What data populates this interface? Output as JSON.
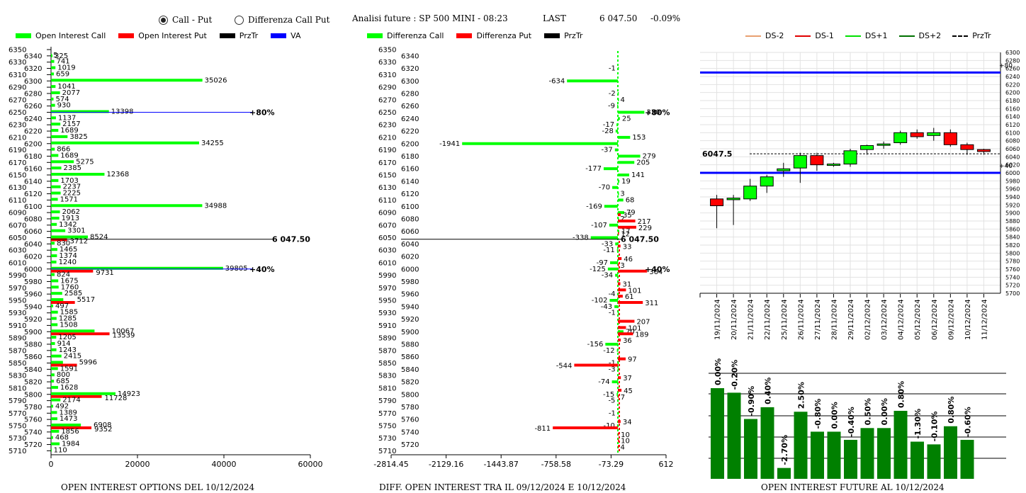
{
  "header": {
    "radio_call_put": "Call - Put",
    "radio_diff": "Differenza Call Put",
    "analysis": "Analisi future : SP 500 MINI - 08:23",
    "last_label": "LAST",
    "last_value": "6 047.50",
    "last_change": "-0.09%"
  },
  "legend1": {
    "call": "Open Interest Call",
    "put": "Open Interest Put",
    "przt": "PrzTr",
    "va": "VA"
  },
  "legend2": {
    "call": "Differenza Call",
    "put": "Differenza Put",
    "przt": "PrzTr"
  },
  "legend3": {
    "ds2": "DS-2",
    "ds1": "DS-1",
    "ds1p": "DS+1",
    "ds2p": "DS+2",
    "przt": "PrzTr"
  },
  "footer": {
    "left": "OPEN INTEREST OPTIONS DEL 10/12/2024",
    "mid": "DIFF. OPEN INTEREST TRA IL 09/12/2024 E 10/12/2024",
    "right": "OPEN INTEREST FUTURE AL 10/12/2024"
  },
  "colors": {
    "call": "#00ff00",
    "put": "#ff0000",
    "dark_green": "#008000",
    "va": "#0000ff"
  },
  "chart_data": [
    {
      "type": "bar",
      "orientation": "horizontal",
      "strikes": [
        6350,
        6340,
        6330,
        6320,
        6310,
        6300,
        6290,
        6280,
        6270,
        6260,
        6250,
        6240,
        6230,
        6220,
        6210,
        6200,
        6190,
        6180,
        6170,
        6160,
        6150,
        6140,
        6130,
        6120,
        6110,
        6100,
        6090,
        6080,
        6070,
        6060,
        6050,
        6040,
        6030,
        6020,
        6010,
        6000,
        5990,
        5980,
        5970,
        5960,
        5950,
        5940,
        5930,
        5920,
        5910,
        5900,
        5890,
        5880,
        5870,
        5860,
        5850,
        5840,
        5830,
        5820,
        5810,
        5800,
        5790,
        5780,
        5770,
        5760,
        5750,
        5740,
        5730,
        5720,
        5710
      ],
      "xlim": [
        0,
        60000
      ],
      "xticks": [
        "0",
        "20000",
        "40000",
        "60000"
      ],
      "bars": [
        {
          "strike": 6340,
          "call": 5,
          "put": 0,
          "label": "5"
        },
        {
          "strike": 6340,
          "call": 325,
          "put": 0,
          "label": "325",
          "offset": 1
        },
        {
          "strike": 6330,
          "call": 741,
          "put": 0,
          "label": "741"
        },
        {
          "strike": 6320,
          "call": 1019,
          "put": 0,
          "label": "1019"
        },
        {
          "strike": 6310,
          "call": 659,
          "put": 0,
          "label": "659"
        },
        {
          "strike": 6300,
          "call": 35026,
          "put": 0,
          "label": "35026"
        },
        {
          "strike": 6290,
          "call": 1041,
          "put": 0,
          "label": "1041"
        },
        {
          "strike": 6280,
          "call": 2077,
          "put": 0,
          "label": "2077"
        },
        {
          "strike": 6270,
          "call": 574,
          "put": 0,
          "label": "574"
        },
        {
          "strike": 6260,
          "call": 930,
          "put": 0,
          "label": "930"
        },
        {
          "strike": 6250,
          "call": 13398,
          "put": 0,
          "label": "13398"
        },
        {
          "strike": 6240,
          "call": 1137,
          "put": 0,
          "label": "1137"
        },
        {
          "strike": 6230,
          "call": 2157,
          "put": 0,
          "label": "2157"
        },
        {
          "strike": 6220,
          "call": 1689,
          "put": 0,
          "label": "1689"
        },
        {
          "strike": 6210,
          "call": 3825,
          "put": 0,
          "label": "3825"
        },
        {
          "strike": 6200,
          "call": 34255,
          "put": 0,
          "label": "34255"
        },
        {
          "strike": 6190,
          "call": 866,
          "put": 0,
          "label": "866"
        },
        {
          "strike": 6180,
          "call": 1689,
          "put": 0,
          "label": "1689"
        },
        {
          "strike": 6170,
          "call": 5275,
          "put": 0,
          "label": "5275"
        },
        {
          "strike": 6160,
          "call": 2385,
          "put": 0,
          "label": "2385"
        },
        {
          "strike": 6150,
          "call": 12368,
          "put": 0,
          "label": "12368"
        },
        {
          "strike": 6140,
          "call": 1703,
          "put": 0,
          "label": "1703"
        },
        {
          "strike": 6130,
          "call": 2237,
          "put": 0,
          "label": "2237"
        },
        {
          "strike": 6120,
          "call": 2225,
          "put": 0,
          "label": "2225"
        },
        {
          "strike": 6110,
          "call": 1571,
          "put": 0,
          "label": "1571"
        },
        {
          "strike": 6100,
          "call": 34988,
          "put": 0,
          "label": "34988"
        },
        {
          "strike": 6090,
          "call": 2062,
          "put": 0,
          "label": "2062"
        },
        {
          "strike": 6080,
          "call": 1913,
          "put": 0,
          "label": "1913"
        },
        {
          "strike": 6070,
          "call": 1342,
          "put": 0,
          "label": "1342"
        },
        {
          "strike": 6060,
          "call": 3301,
          "put": 0,
          "label": "3301"
        },
        {
          "strike": 6050,
          "call": 8524,
          "put": 3712,
          "label": "8524"
        },
        {
          "strike": 6040,
          "call": 830,
          "put": 0,
          "label": "830"
        },
        {
          "strike": 6030,
          "call": 1465,
          "put": 0,
          "label": "1465"
        },
        {
          "strike": 6020,
          "call": 1374,
          "put": 0,
          "label": "1374"
        },
        {
          "strike": 6010,
          "call": 1240,
          "put": 0,
          "label": "1240"
        },
        {
          "strike": 6000,
          "call": 39805,
          "put": 9731,
          "label": "39805"
        },
        {
          "strike": 5990,
          "call": 824,
          "put": 0,
          "label": "824"
        },
        {
          "strike": 5980,
          "call": 1675,
          "put": 0,
          "label": "1675"
        },
        {
          "strike": 5970,
          "call": 1760,
          "put": 0,
          "label": "1760"
        },
        {
          "strike": 5960,
          "call": 2585,
          "put": 0,
          "label": "2585"
        },
        {
          "strike": 5950,
          "call": 2842,
          "put": 5517,
          "label": "5517"
        },
        {
          "strike": 5940,
          "call": 497,
          "put": 0,
          "label": "497"
        },
        {
          "strike": 5930,
          "call": 1585,
          "put": 0,
          "label": "1585"
        },
        {
          "strike": 5920,
          "call": 1285,
          "put": 0,
          "label": "1285"
        },
        {
          "strike": 5910,
          "call": 1508,
          "put": 0,
          "label": "1508"
        },
        {
          "strike": 5900,
          "call": 10067,
          "put": 13539,
          "label": "10067"
        },
        {
          "strike": 5890,
          "call": 1205,
          "put": 0,
          "label": "1205"
        },
        {
          "strike": 5880,
          "call": 914,
          "put": 0,
          "label": "914"
        },
        {
          "strike": 5870,
          "call": 1243,
          "put": 0,
          "label": "1243"
        },
        {
          "strike": 5860,
          "call": 2415,
          "put": 0,
          "label": "2415"
        },
        {
          "strike": 5850,
          "call": 2759,
          "put": 5996,
          "label": "5996"
        },
        {
          "strike": 5840,
          "call": 1591,
          "put": 0,
          "label": "1591"
        },
        {
          "strike": 5830,
          "call": 800,
          "put": 0,
          "label": "800"
        },
        {
          "strike": 5820,
          "call": 685,
          "put": 0,
          "label": "685"
        },
        {
          "strike": 5810,
          "call": 1628,
          "put": 0,
          "label": "1628"
        },
        {
          "strike": 5800,
          "call": 14923,
          "put": 11728,
          "label": "14923"
        },
        {
          "strike": 5790,
          "call": 2174,
          "put": 0,
          "label": "2174"
        },
        {
          "strike": 5780,
          "call": 492,
          "put": 0,
          "label": "492"
        },
        {
          "strike": 5770,
          "call": 1389,
          "put": 0,
          "label": "1389"
        },
        {
          "strike": 5760,
          "call": 1473,
          "put": 0,
          "label": "1473"
        },
        {
          "strike": 5750,
          "call": 6908,
          "put": 9352,
          "label": "6908"
        },
        {
          "strike": 5740,
          "call": 1856,
          "put": 0,
          "label": "1856"
        },
        {
          "strike": 5730,
          "call": 468,
          "put": 0,
          "label": "468"
        },
        {
          "strike": 5720,
          "call": 1984,
          "put": 0,
          "label": "1984"
        },
        {
          "strike": 5710,
          "call": 110,
          "put": 0,
          "label": "110"
        }
      ],
      "extra_labels": [
        {
          "strike": 6000,
          "text": "9731"
        },
        {
          "strike": 5900,
          "text": "13539"
        },
        {
          "strike": 5800,
          "text": "11728"
        },
        {
          "strike": 5750,
          "text": "9352"
        },
        {
          "strike": 6050,
          "text": "3712"
        }
      ],
      "price": {
        "strike": 6047.5,
        "label": "6 047.50"
      },
      "va_lines": [
        {
          "strike": 6250,
          "label": "+80%"
        },
        {
          "strike": 6000,
          "label": "+40%"
        }
      ]
    },
    {
      "type": "bar",
      "orientation": "horizontal",
      "xlim": [
        -2814.45,
        612
      ],
      "xticks": [
        "-2814.45",
        "-2129.16",
        "-1443.87",
        "-758.58",
        "-73.29",
        "612"
      ],
      "calls": [
        {
          "strike": 6320,
          "value": -1
        },
        {
          "strike": 6300,
          "value": -634
        },
        {
          "strike": 6280,
          "value": -2
        },
        {
          "strike": 6270,
          "value": 4
        },
        {
          "strike": 6260,
          "value": -9
        },
        {
          "strike": 6250,
          "value": 330
        },
        {
          "strike": 6240,
          "value": 25
        },
        {
          "strike": 6230,
          "value": -17
        },
        {
          "strike": 6220,
          "value": -28
        },
        {
          "strike": 6210,
          "value": 153
        },
        {
          "strike": 6200,
          "value": -1941
        },
        {
          "strike": 6190,
          "value": -37
        },
        {
          "strike": 6180,
          "value": 279
        },
        {
          "strike": 6170,
          "value": 205
        },
        {
          "strike": 6160,
          "value": -177
        },
        {
          "strike": 6150,
          "value": 141
        },
        {
          "strike": 6140,
          "value": 19
        },
        {
          "strike": 6130,
          "value": -70
        },
        {
          "strike": 6120,
          "value": 3
        },
        {
          "strike": 6110,
          "value": 68
        },
        {
          "strike": 6100,
          "value": -169
        },
        {
          "strike": 6090,
          "value": 79
        },
        {
          "strike": 6080,
          "value": 2
        },
        {
          "strike": 6070,
          "value": -107
        },
        {
          "strike": 6060,
          "value": 17
        },
        {
          "strike": 6050,
          "value": -338
        },
        {
          "strike": 6040,
          "value": -33
        },
        {
          "strike": 6030,
          "value": -11
        },
        {
          "strike": 6010,
          "value": -97
        },
        {
          "strike": 6000,
          "value": -125
        },
        {
          "strike": 5990,
          "value": -34
        },
        {
          "strike": 5960,
          "value": -4
        },
        {
          "strike": 5950,
          "value": -102
        },
        {
          "strike": 5940,
          "value": -43
        },
        {
          "strike": 5930,
          "value": -1
        },
        {
          "strike": 5900,
          "value": 70
        },
        {
          "strike": 5880,
          "value": -156
        },
        {
          "strike": 5870,
          "value": -12
        },
        {
          "strike": 5850,
          "value": -1
        },
        {
          "strike": 5840,
          "value": -3
        },
        {
          "strike": 5820,
          "value": -74
        },
        {
          "strike": 5800,
          "value": -15
        },
        {
          "strike": 5790,
          "value": -5
        },
        {
          "strike": 5770,
          "value": -1
        },
        {
          "strike": 5750,
          "value": -10
        }
      ],
      "puts": [
        {
          "strike": 6090,
          "value": 35
        },
        {
          "strike": 6080,
          "value": 217
        },
        {
          "strike": 6070,
          "value": 229
        },
        {
          "strike": 6020,
          "value": 46
        },
        {
          "strike": 6010,
          "value": 3
        },
        {
          "strike": 6000,
          "value": 364
        },
        {
          "strike": 5980,
          "value": 31
        },
        {
          "strike": 5970,
          "value": 101
        },
        {
          "strike": 5960,
          "value": 61
        },
        {
          "strike": 5950,
          "value": 311
        },
        {
          "strike": 5920,
          "value": 207
        },
        {
          "strike": 5910,
          "value": 101
        },
        {
          "strike": 5900,
          "value": 189
        },
        {
          "strike": 5890,
          "value": 36
        },
        {
          "strike": 5860,
          "value": 97
        },
        {
          "strike": 5850,
          "value": -544
        },
        {
          "strike": 5830,
          "value": 37
        },
        {
          "strike": 5810,
          "value": 45
        },
        {
          "strike": 5800,
          "value": 7
        },
        {
          "strike": 5760,
          "value": 34
        },
        {
          "strike": 5750,
          "value": -811
        },
        {
          "strike": 5740,
          "value": 10
        },
        {
          "strike": 5730,
          "value": 10
        },
        {
          "strike": 5720,
          "value": 4
        },
        {
          "strike": 6060,
          "value": 12
        },
        {
          "strike": 6040,
          "value": 33
        }
      ],
      "price_label": "6 047.50",
      "va_labels": [
        "+80%",
        "+40%"
      ]
    },
    {
      "type": "candlestick",
      "dates": [
        "19/11/2024",
        "20/11/2024",
        "21/11/2024",
        "22/11/2024",
        "25/11/2024",
        "26/11/2024",
        "27/11/2024",
        "28/11/2024",
        "29/11/2024",
        "02/12/2024",
        "03/12/2024",
        "04/12/2024",
        "05/12/2024",
        "06/12/2024",
        "09/12/2024",
        "10/12/2024",
        "11/12/2024"
      ],
      "candles": [
        {
          "o": 5935,
          "h": 5945,
          "l": 5862,
          "c": 5918
        },
        {
          "o": 5933,
          "h": 5945,
          "l": 5870,
          "c": 5937
        },
        {
          "o": 5935,
          "h": 5985,
          "l": 5930,
          "c": 5967
        },
        {
          "o": 5967,
          "h": 5995,
          "l": 5950,
          "c": 5990
        },
        {
          "o": 6005,
          "h": 6025,
          "l": 5990,
          "c": 6010
        },
        {
          "o": 6012,
          "h": 6050,
          "l": 5975,
          "c": 6043
        },
        {
          "o": 6043,
          "h": 6050,
          "l": 6005,
          "c": 6020
        },
        {
          "o": 6020,
          "h": 6025,
          "l": 6015,
          "c": 6022
        },
        {
          "o": 6022,
          "h": 6060,
          "l": 6015,
          "c": 6055
        },
        {
          "o": 6058,
          "h": 6070,
          "l": 6045,
          "c": 6068
        },
        {
          "o": 6070,
          "h": 6078,
          "l": 6060,
          "c": 6072
        },
        {
          "o": 6075,
          "h": 6105,
          "l": 6070,
          "c": 6100
        },
        {
          "o": 6100,
          "h": 6108,
          "l": 6085,
          "c": 6090
        },
        {
          "o": 6093,
          "h": 6112,
          "l": 6080,
          "c": 6100
        },
        {
          "o": 6100,
          "h": 6108,
          "l": 6065,
          "c": 6070
        },
        {
          "o": 6070,
          "h": 6075,
          "l": 6045,
          "c": 6058
        },
        {
          "o": 6058,
          "h": 6060,
          "l": 6045,
          "c": 6053
        }
      ],
      "ylim": [
        5700,
        6300
      ],
      "yticks": [
        5700,
        5720,
        5740,
        5760,
        5780,
        5800,
        5820,
        5840,
        5860,
        5880,
        5900,
        5920,
        5940,
        5960,
        5980,
        6000,
        6020,
        6040,
        6060,
        6080,
        6100,
        6120,
        6140,
        6160,
        6180,
        6200,
        6220,
        6240,
        6260,
        6280,
        6300
      ],
      "lines": [
        {
          "value": 6250,
          "label": "+80"
        },
        {
          "value": 6000,
          "label": "+40"
        }
      ],
      "price": {
        "value": 6047.5,
        "label": "6047.5"
      }
    },
    {
      "type": "bar",
      "values": [
        0.0,
        -0.2,
        -0.9,
        0.4,
        -2.7,
        2.5,
        -0.8,
        0.0,
        -0.4,
        0.5,
        0.0,
        0.8,
        -1.3,
        -0.1,
        0.8,
        -0.6
      ],
      "labels": [
        "0.00%",
        "-0.20%",
        "-0.90%",
        "0.40%",
        "-2.70%",
        "2.50%",
        "-0.80%",
        "0.00%",
        "-0.40%",
        "0.50%",
        "0.00%",
        "0.80%",
        "-1.30%",
        "-0.10%",
        "0.80%",
        "-0.60%"
      ],
      "heights": [
        100,
        95,
        66,
        79,
        12,
        74,
        52,
        52,
        43,
        56,
        56,
        75,
        41,
        38,
        58,
        43
      ]
    }
  ]
}
